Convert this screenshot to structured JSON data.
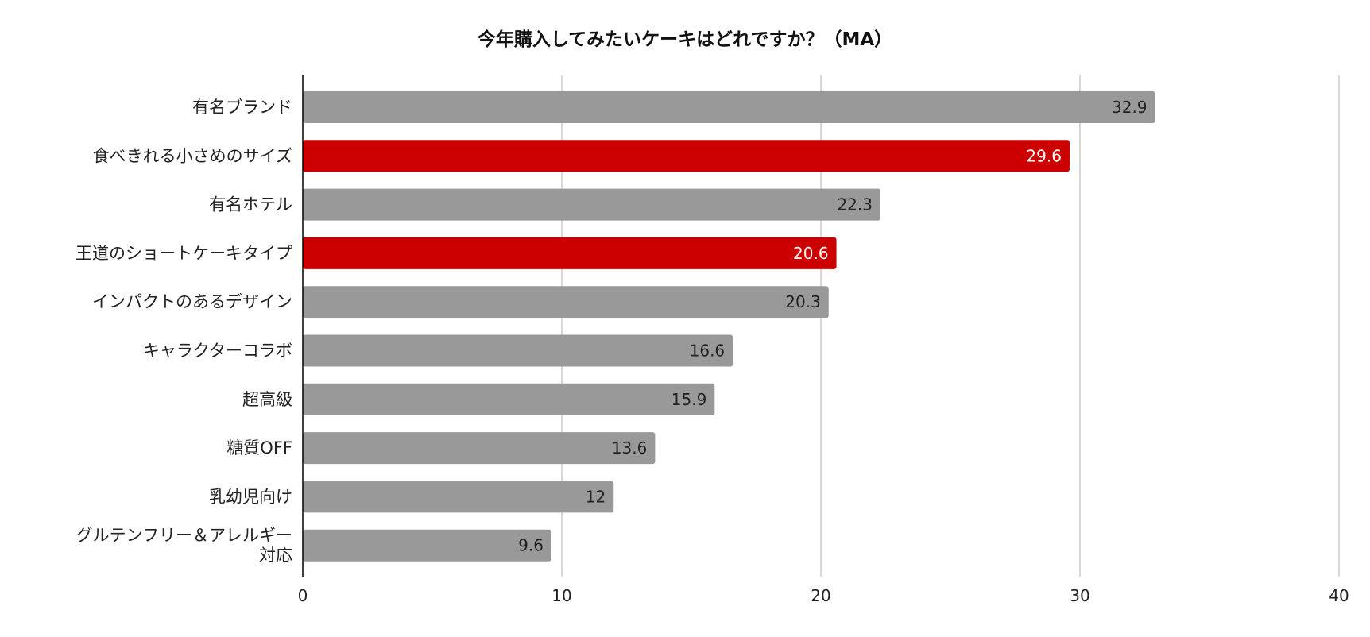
{
  "chart_data": {
    "type": "bar",
    "orientation": "horizontal",
    "title": "今年購入してみたいケーキはどれですか？（MA）",
    "xlabel": "",
    "ylabel": "",
    "xlim": [
      0,
      40
    ],
    "x_ticks": [
      "0",
      "10",
      "20",
      "30",
      "40"
    ],
    "grid": true,
    "categories": [
      "有名ブランド",
      "食べきれる小さめのサイズ",
      "有名ホテル",
      "王道のショートケーキタイプ",
      "インパクトのあるデザイン",
      "キャラクターコラボ",
      "超高級",
      "糖質OFF",
      "乳幼児向け",
      "グルテンフリー＆アレルギー対応"
    ],
    "category_label_lines": [
      [
        "有名ブランド"
      ],
      [
        "食べきれる小さめのサイズ"
      ],
      [
        "有名ホテル"
      ],
      [
        "王道のショートケーキタイプ"
      ],
      [
        "インパクトのあるデザイン"
      ],
      [
        "キャラクターコラボ"
      ],
      [
        "超高級"
      ],
      [
        "糖質OFF"
      ],
      [
        "乳幼児向け"
      ],
      [
        "グルテンフリー＆アレルギー",
        "対応"
      ]
    ],
    "values": [
      32.9,
      29.6,
      22.3,
      20.6,
      20.3,
      16.6,
      15.9,
      13.6,
      12,
      9.6
    ],
    "value_labels": [
      "32.9",
      "29.6",
      "22.3",
      "20.6",
      "20.3",
      "16.6",
      "15.9",
      "13.6",
      "12",
      "9.6"
    ],
    "highlighted": [
      false,
      true,
      false,
      true,
      false,
      false,
      false,
      false,
      false,
      false
    ],
    "colors": {
      "default_bar": "#999999",
      "highlight_bar": "#cc0000",
      "default_label": "#222222",
      "highlight_label": "#ffffff",
      "grid": "#cccccc",
      "axis": "#000000"
    }
  }
}
